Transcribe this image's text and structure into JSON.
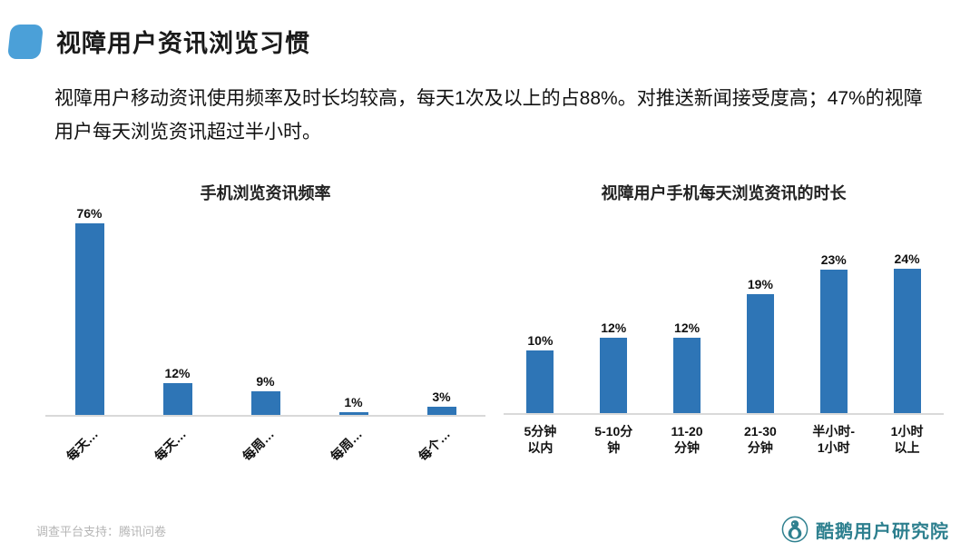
{
  "header": {
    "title": "视障用户资讯浏览习惯"
  },
  "intro": {
    "text": "视障用户移动资讯使用频率及时长均较高，每天1次及以上的占88%。对推送新闻接受度高；47%的视障用户每天浏览资讯超过半小时。"
  },
  "footer": {
    "survey_credit": "调查平台支持：腾讯问卷",
    "logo_text": "酷鹅用户研究院"
  },
  "colors": {
    "bar": "#2E75B6",
    "accent": "#4BA0D8",
    "logo": "#2E808F",
    "footer_text": "#B5B5B5"
  },
  "chart_data": [
    {
      "type": "bar",
      "title": "手机浏览资讯频率",
      "categories": [
        "每天…",
        "每天…",
        "每周…",
        "每周…",
        "每个…"
      ],
      "values": [
        76,
        12,
        9,
        1,
        3
      ],
      "value_labels": [
        "76%",
        "12%",
        "9%",
        "1%",
        "3%"
      ],
      "xlabel": "",
      "ylabel": "",
      "ylim": [
        0,
        80
      ],
      "x_label_rotation": -45,
      "grid": false,
      "legend": false
    },
    {
      "type": "bar",
      "title": "视障用户手机每天浏览资讯的时长",
      "categories": [
        "5分钟\n以内",
        "5-10分\n钟",
        "11-20\n分钟",
        "21-30\n分钟",
        "半小时-\n1小时",
        "1小时\n以上"
      ],
      "values": [
        10,
        12,
        12,
        19,
        23,
        24
      ],
      "value_labels": [
        "10%",
        "12%",
        "12%",
        "19%",
        "23%",
        "24%"
      ],
      "xlabel": "",
      "ylabel": "",
      "ylim": [
        0,
        26
      ],
      "x_label_rotation": 0,
      "grid": false,
      "legend": false
    }
  ]
}
